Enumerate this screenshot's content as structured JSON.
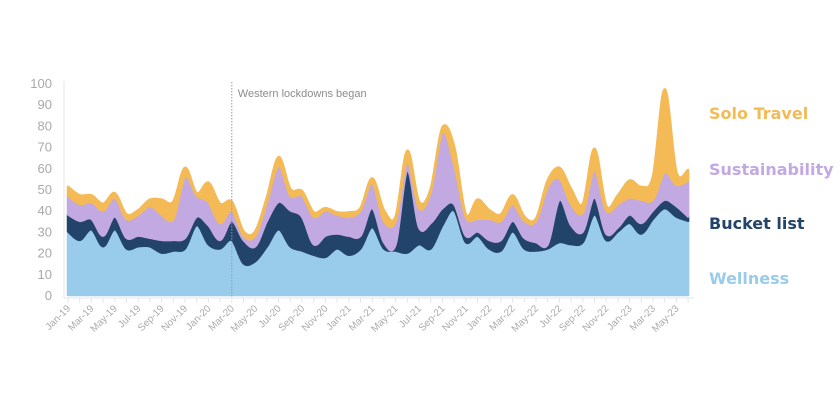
{
  "chart_data": {
    "type": "area",
    "stacked": true,
    "title": "",
    "xlabel": "",
    "ylabel": "",
    "ylim": [
      0,
      100
    ],
    "yticks": [
      0,
      10,
      20,
      30,
      40,
      50,
      60,
      70,
      80,
      90,
      100
    ],
    "grid": false,
    "legend_placement": "right",
    "categories": [
      "Jan-19",
      "Feb-19",
      "Mar-19",
      "Apr-19",
      "May-19",
      "Jun-19",
      "Jul-19",
      "Aug-19",
      "Sep-19",
      "Oct-19",
      "Nov-19",
      "Dec-19",
      "Jan-20",
      "Feb-20",
      "Mar-20",
      "Apr-20",
      "May-20",
      "Jun-20",
      "Jul-20",
      "Aug-20",
      "Sep-20",
      "Oct-20",
      "Nov-20",
      "Dec-20",
      "Jan-21",
      "Feb-21",
      "Mar-21",
      "Apr-21",
      "May-21",
      "Jun-21",
      "Jul-21",
      "Aug-21",
      "Sep-21",
      "Oct-21",
      "Nov-21",
      "Dec-21",
      "Jan-22",
      "Feb-22",
      "Mar-22",
      "Apr-22",
      "May-22",
      "Jun-22",
      "Jul-22",
      "Aug-22",
      "Sep-22",
      "Oct-22",
      "Nov-22",
      "Dec-22",
      "Jan-23",
      "Feb-23",
      "Mar-23",
      "Apr-23",
      "May-23",
      "Jun-23"
    ],
    "series": [
      {
        "name": "Wellness",
        "color": "#99cceb",
        "values": [
          30,
          26,
          31,
          23,
          31,
          22,
          23,
          23,
          20,
          21,
          22,
          33,
          24,
          22,
          26,
          15,
          16,
          23,
          31,
          23,
          21,
          19,
          18,
          22,
          19,
          22,
          32,
          22,
          21,
          20,
          24,
          22,
          33,
          40,
          25,
          28,
          22,
          21,
          30,
          22,
          21,
          22,
          25,
          24,
          25,
          38,
          26,
          30,
          34,
          29,
          36,
          41,
          37,
          35
        ]
      },
      {
        "name": "Bucket list",
        "color": "#22446a",
        "values": [
          8,
          9,
          5,
          5,
          6,
          5,
          5,
          4,
          6,
          5,
          5,
          4,
          9,
          4,
          9,
          11,
          7,
          12,
          13,
          17,
          16,
          5,
          10,
          7,
          9,
          6,
          9,
          3,
          3,
          39,
          8,
          12,
          8,
          3,
          3,
          2,
          4,
          5,
          5,
          5,
          4,
          2,
          20,
          9,
          5,
          8,
          3,
          2,
          4,
          5,
          4,
          4,
          5,
          2
        ]
      },
      {
        "name": "Sustainability",
        "color": "#c2a9e1",
        "values": [
          9,
          8,
          8,
          12,
          9,
          9,
          10,
          15,
          12,
          10,
          29,
          10,
          11,
          8,
          5,
          2,
          5,
          9,
          17,
          7,
          10,
          13,
          12,
          9,
          9,
          12,
          12,
          10,
          11,
          4,
          9,
          15,
          36,
          19,
          9,
          6,
          10,
          9,
          8,
          8,
          10,
          27,
          10,
          10,
          9,
          13,
          11,
          11,
          8,
          11,
          5,
          13,
          10,
          17
        ]
      },
      {
        "name": "Solo Travel",
        "color": "#f3ba56",
        "values": [
          4,
          4,
          3,
          3,
          2,
          2,
          2,
          3,
          7,
          8,
          4,
          1,
          9,
          9,
          4,
          2,
          2,
          2,
          4,
          3,
          2,
          2,
          1,
          1,
          2,
          1,
          2,
          5,
          2,
          5,
          3,
          1,
          2,
          8,
          1,
          9,
          4,
          3,
          4,
          2,
          1,
          3,
          5,
          7,
          4,
          10,
          2,
          4,
          8,
          6,
          11,
          39,
          6,
          5
        ]
      }
    ],
    "annotations": [
      {
        "x": "Mar-20",
        "text": "Western lockdowns began"
      }
    ]
  }
}
